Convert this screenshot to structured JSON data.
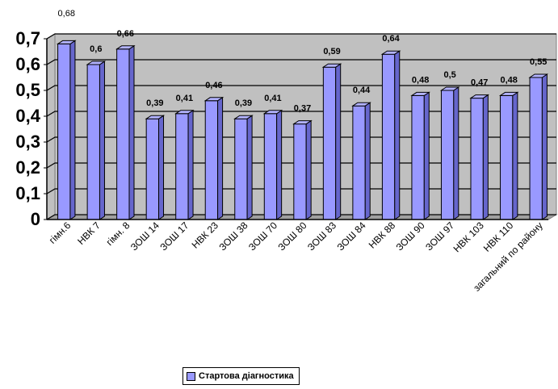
{
  "chart_data": {
    "type": "bar",
    "style": "3d-column",
    "categories": [
      "гімн.6",
      "НВК 7",
      "гімн. 8",
      "ЗОШ 14",
      "ЗОШ 17",
      "НВК 23",
      "ЗОШ 38",
      "ЗОШ 70",
      "ЗОШ 80",
      "ЗОШ 83",
      "ЗОШ 84",
      "НВК 88",
      "ЗОШ 90",
      "ЗОШ 97",
      "НВК 103",
      "НВК 110",
      "загальний по району"
    ],
    "series": [
      {
        "name": "Стартова діагностика",
        "color": "#9999ff",
        "values": [
          0.68,
          0.6,
          0.66,
          0.39,
          0.41,
          0.46,
          0.39,
          0.41,
          0.37,
          0.59,
          0.44,
          0.64,
          0.48,
          0.5,
          0.47,
          0.48,
          0.55
        ]
      }
    ],
    "data_labels": [
      "0,68",
      "0,6",
      "0,66",
      "0,39",
      "0,41",
      "0,46",
      "0,39",
      "0,41",
      "0,37",
      "0,59",
      "0,44",
      "0,64",
      "0,48",
      "0,5",
      "0,47",
      "0,48",
      "0,55"
    ],
    "ylim": [
      0,
      0.7
    ],
    "yticks": [
      0,
      0.1,
      0.2,
      0.3,
      0.4,
      0.5,
      0.6,
      0.7
    ],
    "ytick_labels": [
      "0",
      "0,1",
      "0,2",
      "0,3",
      "0,4",
      "0,5",
      "0,6",
      "0,7"
    ],
    "grid": true,
    "plot_background": "#c0c0c0",
    "legend_position": "bottom"
  },
  "legend": {
    "label": "Стартова діагностика"
  }
}
